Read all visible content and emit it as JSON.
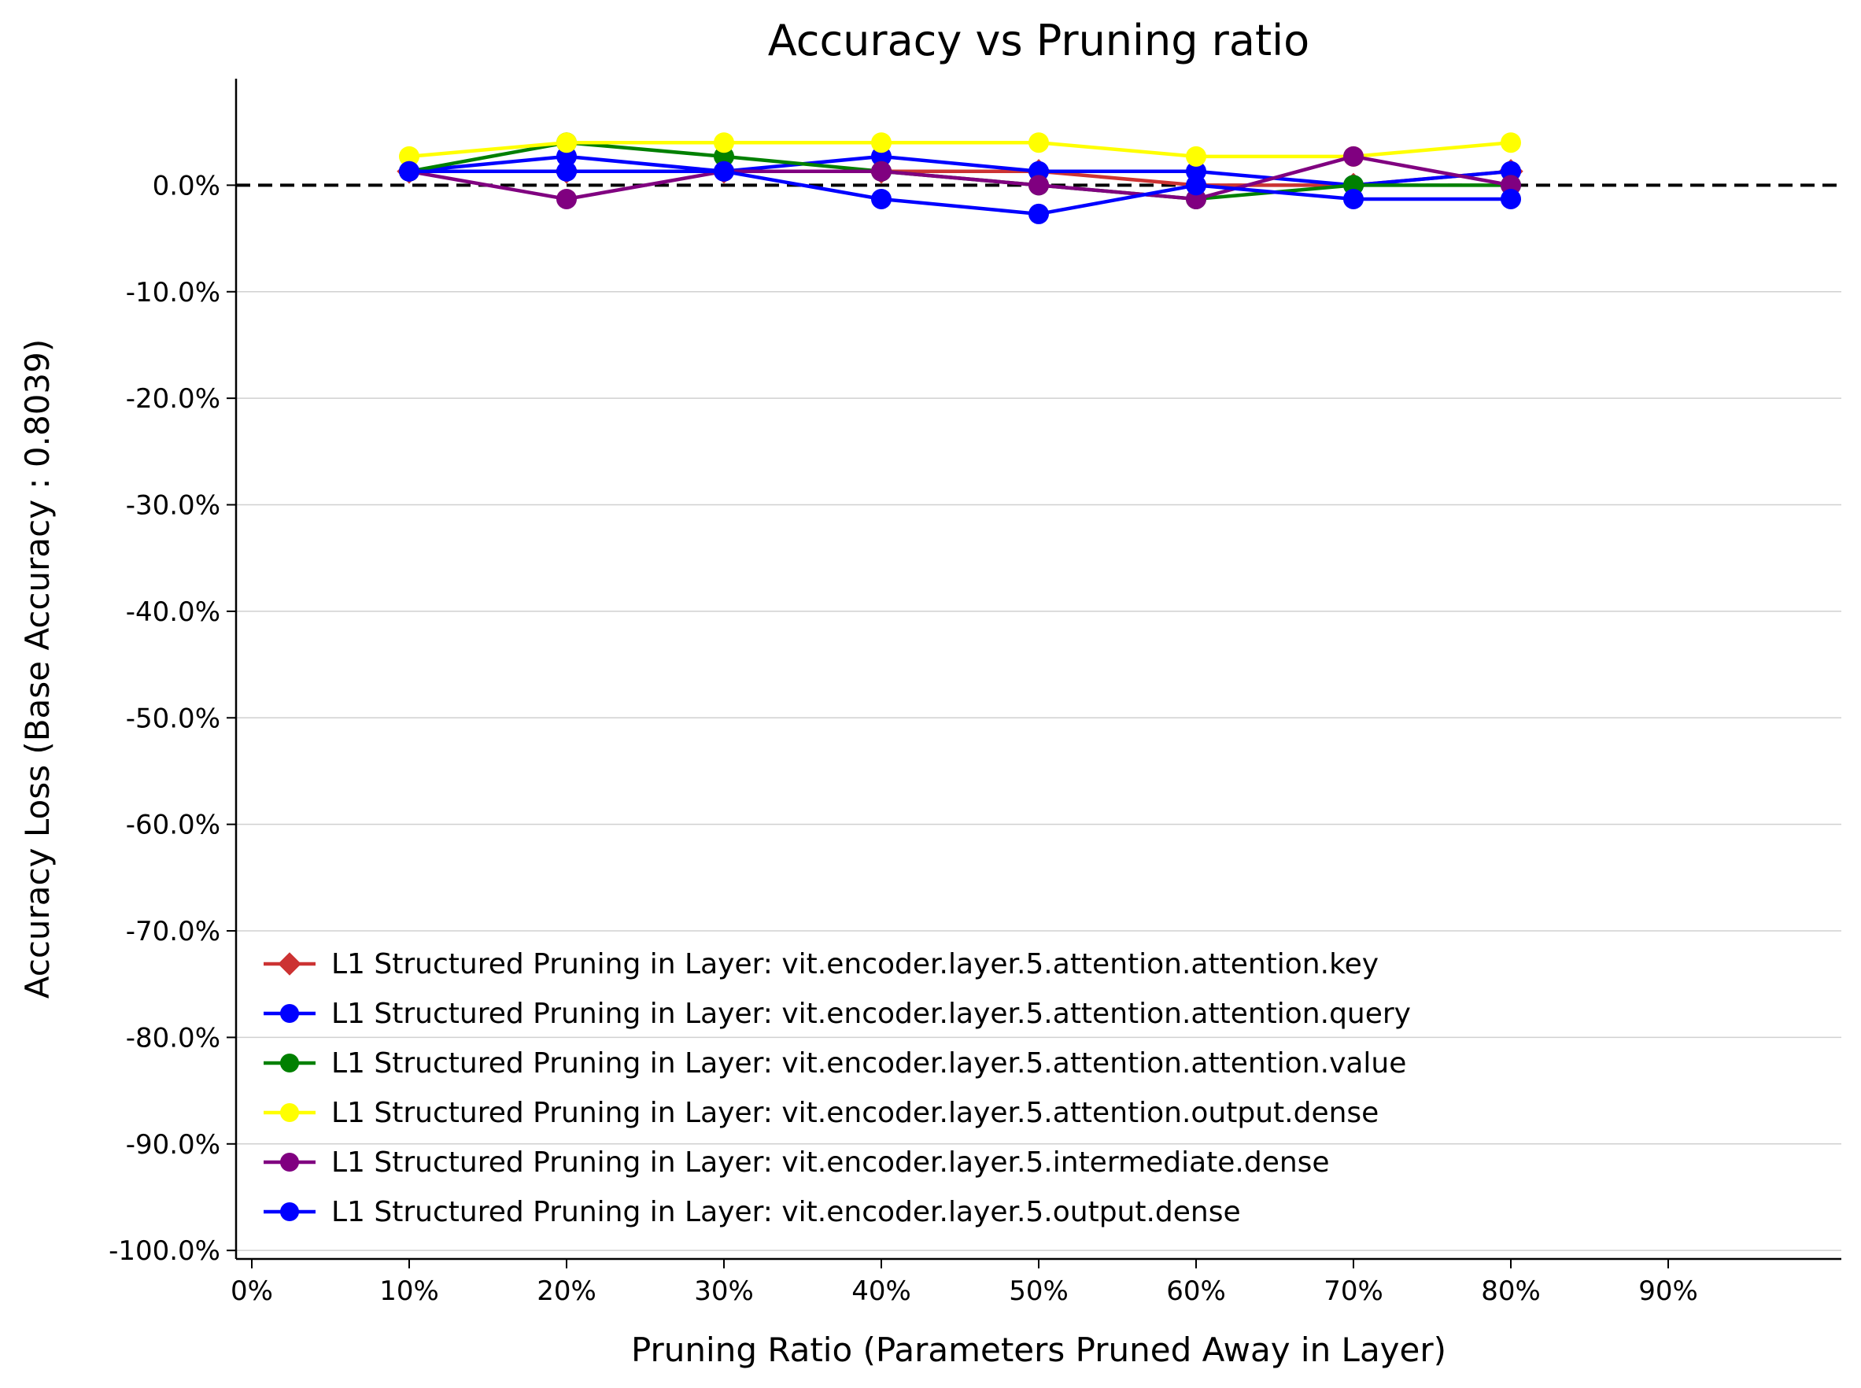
{
  "chart_data": {
    "type": "line",
    "title": "Accuracy vs Pruning ratio",
    "xlabel": "Pruning Ratio (Parameters Pruned Away in Layer)",
    "ylabel": "Accuracy Loss (Base Accuracy : 0.8039)",
    "x_ticks": [
      "0%",
      "10%",
      "20%",
      "30%",
      "40%",
      "50%",
      "60%",
      "70%",
      "80%",
      "90%"
    ],
    "y_ticks": [
      "0.0%",
      "-10.0%",
      "-20.0%",
      "-30.0%",
      "-40.0%",
      "-50.0%",
      "-60.0%",
      "-70.0%",
      "-80.0%",
      "-90.0%",
      "-100.0%"
    ],
    "xlim": [
      -0.01,
      1.01
    ],
    "ylim": [
      -100.8,
      10
    ],
    "x": [
      0.1,
      0.2,
      0.3,
      0.4,
      0.5,
      0.6,
      0.7,
      0.8
    ],
    "grid": "horizontal",
    "reference_line": {
      "y": 0,
      "style": "dashed",
      "color": "#000000"
    },
    "legend_position": "lower-left",
    "series": [
      {
        "name": "L1 Structured Pruning in Layer: vit.encoder.layer.5.attention.attention.key",
        "color": "#cc3333",
        "marker": "diamond",
        "values": [
          1.3,
          1.3,
          1.3,
          1.3,
          1.3,
          0.0,
          0.0,
          1.3
        ]
      },
      {
        "name": "L1 Structured Pruning in Layer: vit.encoder.layer.5.attention.attention.query",
        "color": "#0000ff",
        "marker": "circle",
        "values": [
          1.3,
          2.7,
          1.3,
          2.7,
          1.3,
          1.3,
          0.0,
          1.3
        ]
      },
      {
        "name": "L1 Structured Pruning in Layer: vit.encoder.layer.5.attention.attention.value",
        "color": "#008000",
        "marker": "circle",
        "values": [
          1.3,
          4.0,
          2.7,
          1.3,
          0.0,
          -1.3,
          0.0,
          0.0
        ]
      },
      {
        "name": "L1 Structured Pruning in Layer: vit.encoder.layer.5.attention.output.dense",
        "color": "#ffff00",
        "marker": "circle",
        "values": [
          2.7,
          4.0,
          4.0,
          4.0,
          4.0,
          2.7,
          2.7,
          4.0
        ]
      },
      {
        "name": "L1 Structured Pruning in Layer: vit.encoder.layer.5.intermediate.dense",
        "color": "#800080",
        "marker": "circle",
        "values": [
          1.3,
          -1.3,
          1.3,
          1.3,
          0.0,
          -1.3,
          2.7,
          0.0
        ]
      },
      {
        "name": "L1 Structured Pruning in Layer: vit.encoder.layer.5.output.dense",
        "color": "#0000ff",
        "marker": "circle",
        "values": [
          1.3,
          1.3,
          1.3,
          -1.3,
          -2.7,
          0.0,
          -1.3,
          -1.3
        ]
      }
    ]
  }
}
